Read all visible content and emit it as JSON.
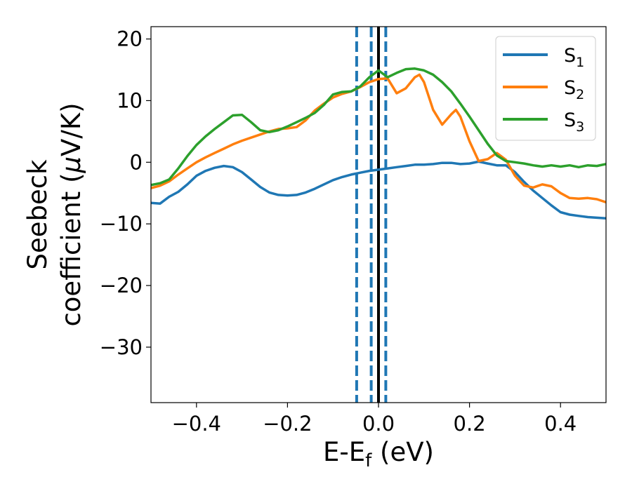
{
  "chart_data": {
    "type": "line",
    "xlabel": {
      "main": "E-E",
      "sub": "f",
      "unit": " (eV)"
    },
    "ylabel": {
      "line1": "Seebeck",
      "line2": "coefficient  (",
      "mu": "μ",
      "unit": "V/K)"
    },
    "xlim": [
      -0.5,
      0.5
    ],
    "ylim": [
      -39,
      22
    ],
    "xticks": [
      {
        "value": -0.4,
        "label": "−0.4"
      },
      {
        "value": -0.2,
        "label": "−0.2"
      },
      {
        "value": 0.0,
        "label": "0.0"
      },
      {
        "value": 0.2,
        "label": "0.2"
      },
      {
        "value": 0.4,
        "label": "0.4"
      }
    ],
    "yticks": [
      {
        "value": 20,
        "label": "20"
      },
      {
        "value": 10,
        "label": "10"
      },
      {
        "value": 0,
        "label": "0"
      },
      {
        "value": -10,
        "label": "−10"
      },
      {
        "value": -20,
        "label": "−20"
      },
      {
        "value": -30,
        "label": "−30"
      }
    ],
    "grid": false,
    "legend_position": "top-right",
    "vlines": [
      {
        "x": -0.048,
        "color": "#1f77b4",
        "style": "dashed"
      },
      {
        "x": -0.016,
        "color": "#1f77b4",
        "style": "dashed"
      },
      {
        "x": 0.0,
        "color": "#000000",
        "style": "solid"
      },
      {
        "x": 0.016,
        "color": "#1f77b4",
        "style": "dashed"
      }
    ],
    "series": [
      {
        "name": "S",
        "sub": "1",
        "color": "#1f77b4",
        "x": [
          -0.5,
          -0.48,
          -0.46,
          -0.44,
          -0.42,
          -0.4,
          -0.38,
          -0.36,
          -0.34,
          -0.32,
          -0.3,
          -0.28,
          -0.26,
          -0.24,
          -0.22,
          -0.2,
          -0.18,
          -0.16,
          -0.14,
          -0.12,
          -0.1,
          -0.08,
          -0.06,
          -0.04,
          -0.02,
          0.0,
          0.02,
          0.04,
          0.06,
          0.08,
          0.1,
          0.12,
          0.14,
          0.16,
          0.18,
          0.2,
          0.22,
          0.24,
          0.26,
          0.28,
          0.3,
          0.32,
          0.34,
          0.36,
          0.38,
          0.4,
          0.42,
          0.44,
          0.46,
          0.48,
          0.5
        ],
        "y": [
          -6.6,
          -6.7,
          -5.6,
          -4.8,
          -3.6,
          -2.2,
          -1.4,
          -0.9,
          -0.6,
          -0.8,
          -1.6,
          -2.8,
          -4.0,
          -4.9,
          -5.3,
          -5.4,
          -5.3,
          -4.9,
          -4.3,
          -3.6,
          -2.9,
          -2.4,
          -2.0,
          -1.7,
          -1.4,
          -1.2,
          -1.0,
          -0.8,
          -0.6,
          -0.4,
          -0.4,
          -0.3,
          -0.1,
          -0.1,
          -0.3,
          -0.2,
          0.1,
          -0.2,
          -0.5,
          -0.5,
          -1.6,
          -3.2,
          -4.6,
          -5.8,
          -7.0,
          -8.1,
          -8.5,
          -8.7,
          -8.9,
          -9.0,
          -9.1
        ]
      },
      {
        "name": "S",
        "sub": "2",
        "color": "#ff7f0e",
        "x": [
          -0.5,
          -0.48,
          -0.46,
          -0.44,
          -0.42,
          -0.4,
          -0.38,
          -0.36,
          -0.34,
          -0.32,
          -0.3,
          -0.28,
          -0.26,
          -0.24,
          -0.22,
          -0.2,
          -0.18,
          -0.16,
          -0.14,
          -0.12,
          -0.1,
          -0.08,
          -0.06,
          -0.04,
          -0.02,
          0.0,
          0.02,
          0.04,
          0.06,
          0.08,
          0.09,
          0.1,
          0.12,
          0.14,
          0.16,
          0.17,
          0.18,
          0.2,
          0.22,
          0.24,
          0.26,
          0.28,
          0.3,
          0.32,
          0.34,
          0.36,
          0.38,
          0.4,
          0.42,
          0.44,
          0.46,
          0.48,
          0.5
        ],
        "y": [
          -4.2,
          -3.8,
          -3.1,
          -2.0,
          -1.0,
          0.0,
          0.8,
          1.5,
          2.2,
          2.9,
          3.5,
          4.0,
          4.5,
          5.0,
          5.4,
          5.5,
          5.7,
          6.8,
          8.4,
          9.5,
          10.5,
          11.1,
          11.5,
          12.2,
          13.0,
          13.5,
          13.6,
          11.2,
          12.0,
          13.8,
          14.2,
          13.0,
          8.5,
          6.1,
          7.8,
          8.5,
          7.4,
          3.4,
          0.2,
          0.5,
          1.5,
          0.4,
          -2.2,
          -3.8,
          -4.1,
          -3.6,
          -3.9,
          -5.0,
          -5.8,
          -5.9,
          -5.8,
          -6.0,
          -6.5
        ]
      },
      {
        "name": "S",
        "sub": "3",
        "color": "#2ca02c",
        "x": [
          -0.5,
          -0.48,
          -0.46,
          -0.44,
          -0.42,
          -0.4,
          -0.38,
          -0.36,
          -0.34,
          -0.32,
          -0.3,
          -0.28,
          -0.26,
          -0.24,
          -0.22,
          -0.2,
          -0.18,
          -0.16,
          -0.14,
          -0.12,
          -0.1,
          -0.08,
          -0.06,
          -0.04,
          -0.02,
          0.0,
          0.02,
          0.04,
          0.06,
          0.08,
          0.1,
          0.12,
          0.14,
          0.16,
          0.18,
          0.2,
          0.22,
          0.24,
          0.26,
          0.28,
          0.3,
          0.32,
          0.34,
          0.36,
          0.38,
          0.4,
          0.42,
          0.44,
          0.46,
          0.48,
          0.5
        ],
        "y": [
          -3.7,
          -3.4,
          -2.8,
          -1.0,
          1.0,
          2.8,
          4.2,
          5.4,
          6.5,
          7.6,
          7.7,
          6.5,
          5.2,
          4.9,
          5.2,
          5.8,
          6.5,
          7.2,
          8.0,
          9.3,
          11.0,
          11.4,
          11.5,
          12.3,
          13.8,
          14.9,
          13.8,
          14.5,
          15.1,
          15.2,
          14.9,
          14.2,
          13.0,
          11.5,
          9.5,
          7.4,
          5.2,
          3.0,
          1.1,
          0.2,
          0.0,
          -0.2,
          -0.5,
          -0.7,
          -0.5,
          -0.7,
          -0.5,
          -0.8,
          -0.5,
          -0.6,
          -0.3
        ]
      }
    ]
  }
}
